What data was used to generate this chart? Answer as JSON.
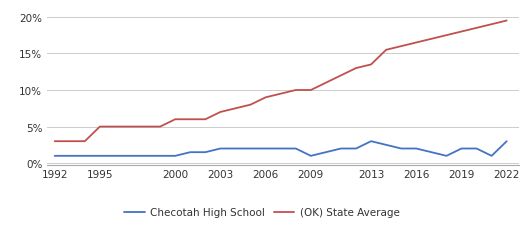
{
  "checotah_years": [
    1992,
    1993,
    1994,
    1995,
    1996,
    1997,
    1998,
    1999,
    2000,
    2001,
    2002,
    2003,
    2004,
    2005,
    2006,
    2007,
    2008,
    2009,
    2010,
    2011,
    2012,
    2013,
    2014,
    2015,
    2016,
    2017,
    2018,
    2019,
    2020,
    2021,
    2022
  ],
  "checotah_values": [
    0.01,
    0.01,
    0.01,
    0.01,
    0.01,
    0.01,
    0.01,
    0.01,
    0.01,
    0.015,
    0.015,
    0.02,
    0.02,
    0.02,
    0.02,
    0.02,
    0.02,
    0.01,
    0.015,
    0.02,
    0.02,
    0.03,
    0.025,
    0.02,
    0.02,
    0.015,
    0.01,
    0.02,
    0.02,
    0.01,
    0.03
  ],
  "state_years": [
    1992,
    1993,
    1994,
    1995,
    1996,
    1997,
    1998,
    1999,
    2000,
    2001,
    2002,
    2003,
    2004,
    2005,
    2006,
    2007,
    2008,
    2009,
    2010,
    2011,
    2012,
    2013,
    2014,
    2015,
    2016,
    2017,
    2018,
    2019,
    2020,
    2021,
    2022
  ],
  "state_values": [
    0.03,
    0.03,
    0.03,
    0.05,
    0.05,
    0.05,
    0.05,
    0.05,
    0.06,
    0.06,
    0.06,
    0.07,
    0.075,
    0.08,
    0.09,
    0.095,
    0.1,
    0.1,
    0.11,
    0.12,
    0.13,
    0.135,
    0.155,
    0.16,
    0.165,
    0.17,
    0.175,
    0.18,
    0.185,
    0.19,
    0.195
  ],
  "checotah_color": "#4472c4",
  "state_color": "#c0504d",
  "checotah_label": "Checotah High School",
  "state_label": "(OK) State Average",
  "xticks": [
    1992,
    1995,
    2000,
    2003,
    2006,
    2009,
    2013,
    2016,
    2019,
    2022
  ],
  "yticks": [
    0.0,
    0.05,
    0.1,
    0.15,
    0.2
  ],
  "xlim": [
    1991.5,
    2022.8
  ],
  "ylim": [
    -0.002,
    0.215
  ],
  "background_color": "#ffffff",
  "grid_color": "#cccccc",
  "legend_fontsize": 7.5,
  "tick_fontsize": 7.5,
  "line_width": 1.3
}
